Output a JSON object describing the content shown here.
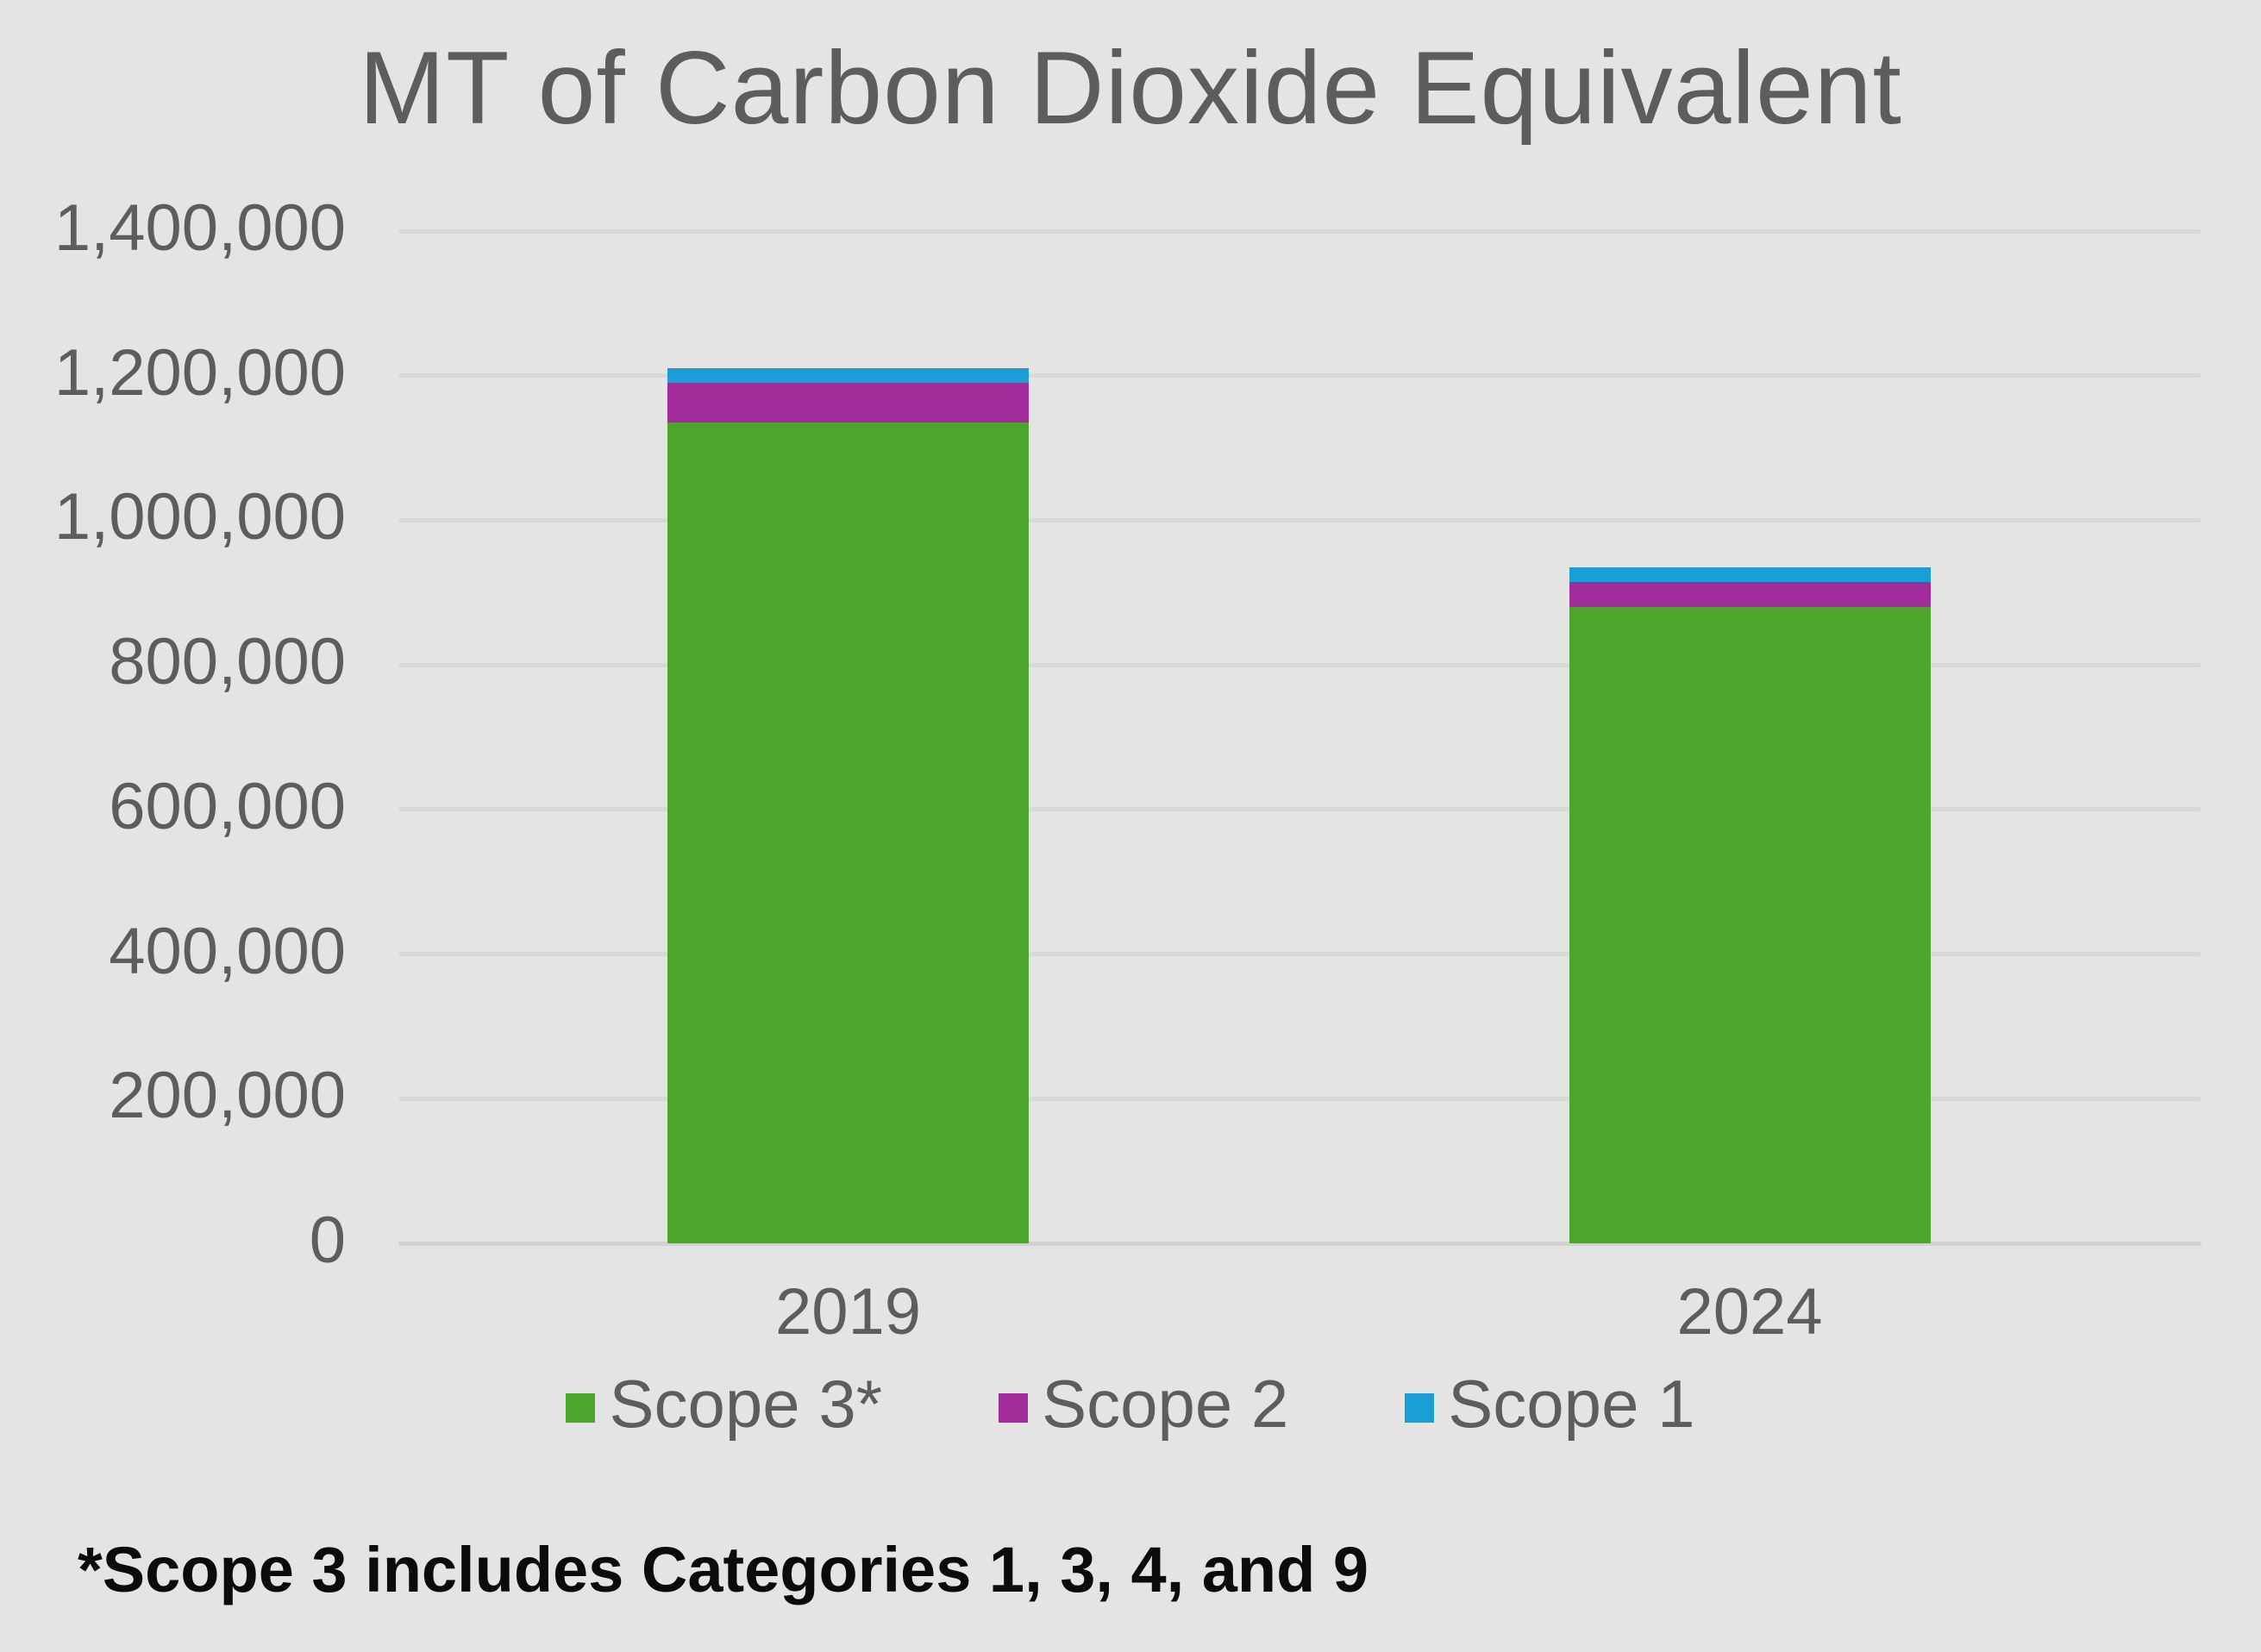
{
  "chart_data": {
    "type": "bar",
    "variant": "stacked",
    "title": "MT of Carbon Dioxide Equivalent",
    "categories": [
      "2019",
      "2024"
    ],
    "series": [
      {
        "name": "Scope 3*",
        "color": "#4DA62C",
        "values": [
          1135000,
          880000
        ]
      },
      {
        "name": "Scope 2",
        "color": "#A32C9D",
        "values": [
          55000,
          35000
        ]
      },
      {
        "name": "Scope 1",
        "color": "#199FD6",
        "values": [
          20000,
          20000
        ]
      }
    ],
    "stack_order_bottom_to_top": [
      "Scope 3*",
      "Scope 2",
      "Scope 1"
    ],
    "approx_totals": [
      1210000,
      935000
    ],
    "y_axis": {
      "min": 0,
      "max": 1400000,
      "step": 200000,
      "tick_labels_top_to_bottom": [
        "1,400,000",
        "1,200,000",
        "1,000,000",
        "800,000",
        "600,000",
        "400,000",
        "200,000",
        "0"
      ]
    },
    "grid": "horizontal",
    "legend": {
      "position": "bottom",
      "entries": [
        "Scope 3*",
        "Scope 2",
        "Scope 1"
      ]
    },
    "footnote": "*Scope 3 includes Categories 1, 3, 4, and 9",
    "colors": {
      "background": "#E4E4E4",
      "gridline": "#D9D9D9",
      "axis_text": "#5D5D5D",
      "title_text": "#5D5D5D",
      "footnote_text": "#0B0B0B"
    }
  }
}
